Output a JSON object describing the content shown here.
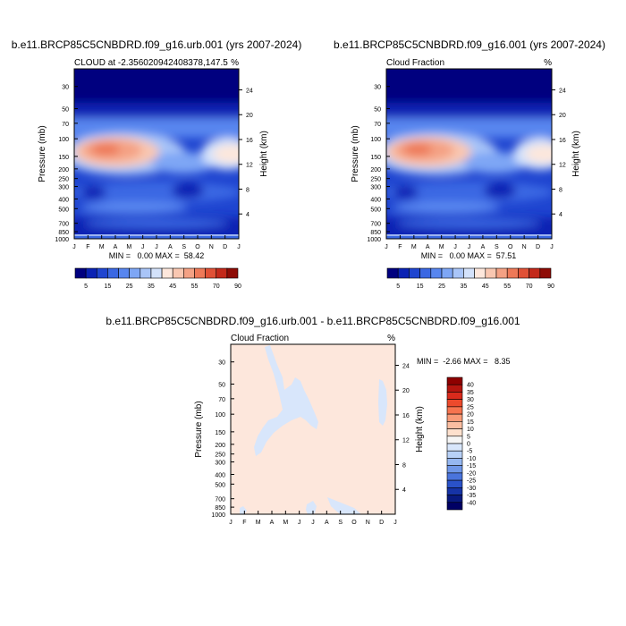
{
  "chart_data": [
    {
      "type": "heatmap",
      "id": "p1",
      "title": "b.e11.BRCP85C5CNBDRD.f09_g16.urb.001 (yrs 2007-2024)",
      "subtitle_left": "CLOUD at -2.356020942408378,147.5",
      "subtitle_right": "%",
      "ylabel": "Pressure (mb)",
      "ylabel_right": "Height (km)",
      "x_ticks": [
        "J",
        "F",
        "M",
        "A",
        "M",
        "J",
        "J",
        "A",
        "S",
        "O",
        "N",
        "D",
        "J"
      ],
      "y_ticks": [
        30,
        50,
        70,
        100,
        150,
        200,
        250,
        300,
        400,
        500,
        700,
        850,
        1000
      ],
      "y_range": [
        20,
        1000
      ],
      "height_ticks": [
        24,
        20,
        16,
        12,
        8,
        4
      ],
      "stat_text": "MIN =   0.00 MAX =  58.42",
      "min": 0.0,
      "max": 58.42,
      "colorbar_labels": [
        "5",
        "15",
        "25",
        "35",
        "45",
        "55",
        "70",
        "90"
      ]
    },
    {
      "type": "heatmap",
      "id": "p2",
      "title": "b.e11.BRCP85C5CNBDRD.f09_g16.001 (yrs 2007-2024)",
      "subtitle_left": "Cloud Fraction",
      "subtitle_right": "%",
      "ylabel": "Pressure (mb)",
      "ylabel_right": "Height (km)",
      "x_ticks": [
        "J",
        "F",
        "M",
        "A",
        "M",
        "J",
        "J",
        "A",
        "S",
        "O",
        "N",
        "D",
        "J"
      ],
      "y_ticks": [
        30,
        50,
        70,
        100,
        150,
        200,
        250,
        300,
        400,
        500,
        700,
        850,
        1000
      ],
      "y_range": [
        20,
        1000
      ],
      "height_ticks": [
        24,
        20,
        16,
        12,
        8,
        4
      ],
      "stat_text": "MIN =   0.00 MAX =  57.51",
      "min": 0.0,
      "max": 57.51,
      "colorbar_labels": [
        "5",
        "15",
        "25",
        "35",
        "45",
        "55",
        "70",
        "90"
      ]
    },
    {
      "type": "heatmap",
      "id": "p3",
      "title": "b.e11.BRCP85C5CNBDRD.f09_g16.urb.001 - b.e11.BRCP85C5CNBDRD.f09_g16.001",
      "subtitle_left": "Cloud Fraction",
      "subtitle_right": "%",
      "ylabel": "Pressure (mb)",
      "ylabel_right": "Height (km)",
      "x_ticks": [
        "J",
        "F",
        "M",
        "A",
        "M",
        "J",
        "J",
        "A",
        "S",
        "O",
        "N",
        "D",
        "J"
      ],
      "y_ticks": [
        30,
        50,
        70,
        100,
        150,
        200,
        250,
        300,
        400,
        500,
        700,
        850,
        1000
      ],
      "y_range": [
        20,
        1000
      ],
      "height_ticks": [
        24,
        20,
        16,
        12,
        8,
        4
      ],
      "stat_text": "MIN =  -2.66 MAX =   8.35",
      "min": -2.66,
      "max": 8.35,
      "colorbar_labels": [
        "40",
        "35",
        "30",
        "25",
        "20",
        "15",
        "10",
        "5",
        "0",
        "-5",
        "-10",
        "-15",
        "-20",
        "-25",
        "-30",
        "-35",
        "-40"
      ]
    }
  ],
  "colors": {
    "seq_palette": [
      "#00007f",
      "#0a22b4",
      "#1f45d0",
      "#3a67e3",
      "#5886ef",
      "#7ea6f5",
      "#a9c5f8",
      "#d3e2fb",
      "#fde7dc",
      "#f9c7b1",
      "#f4a184",
      "#ee7958",
      "#e05136",
      "#c3291a",
      "#8e0c06"
    ],
    "div_palette": [
      "#8e0000",
      "#b5150f",
      "#d92a1c",
      "#ec4a2c",
      "#f6744f",
      "#f99b78",
      "#fbbea1",
      "#fde0cd",
      "#f5f5f5",
      "#d8e6fb",
      "#b8d1f7",
      "#95b7f1",
      "#6f97e8",
      "#4a74dc",
      "#2a52c9",
      "#1633a6",
      "#08197f",
      "#000064"
    ]
  }
}
